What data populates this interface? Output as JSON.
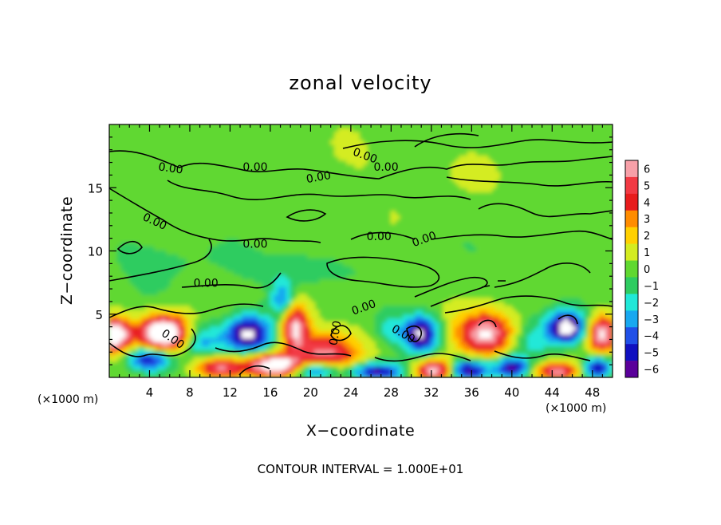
{
  "chart_data": {
    "type": "heatmap",
    "title": "zonal velocity",
    "xlabel": "X−coordinate",
    "ylabel": "Z−coordinate",
    "x_unit": "(×1000 m)",
    "z_unit": "(×1000 m)",
    "footer": "CONTOUR INTERVAL = 1.000E+01",
    "xlim": [
      0,
      50
    ],
    "ylim": [
      0,
      20
    ],
    "x_ticks": [
      4,
      8,
      12,
      16,
      20,
      24,
      28,
      32,
      36,
      40,
      44,
      48
    ],
    "x_tick_labels": [
      "4",
      "8",
      "12",
      "16",
      "20",
      "24",
      "28",
      "32",
      "36",
      "40",
      "44",
      "48"
    ],
    "y_ticks": [
      5,
      10,
      15
    ],
    "y_tick_labels": [
      "5",
      "10",
      "15"
    ],
    "colorbar": {
      "levels": [
        6,
        5,
        4,
        3,
        2,
        1,
        0,
        -1,
        -2,
        -3,
        -4,
        -5,
        -6
      ],
      "labels": [
        "6",
        "5",
        "4",
        "3",
        "2",
        "1",
        "0",
        "−1",
        "−2",
        "−3",
        "−4",
        "−5",
        "−6"
      ],
      "colors": [
        "#f7a0a8",
        "#f23a44",
        "#e81c1c",
        "#ff8c00",
        "#ffd000",
        "#d4ec20",
        "#60d830",
        "#2ecc60",
        "#20e8d8",
        "#18a8f0",
        "#2050e8",
        "#1010c0",
        "#5a009a"
      ]
    },
    "contour_labels": [
      {
        "text": "0.00",
        "x": 6.1,
        "z": 16.5,
        "angle": 8
      },
      {
        "text": "0.00",
        "x": 14.5,
        "z": 16.6,
        "angle": 0
      },
      {
        "text": "0.00",
        "x": 20.8,
        "z": 15.8,
        "angle": -10
      },
      {
        "text": "0.00",
        "x": 25.4,
        "z": 17.5,
        "angle": 20
      },
      {
        "text": "0.00",
        "x": 27.5,
        "z": 16.6,
        "angle": 0
      },
      {
        "text": "0.00",
        "x": 4.5,
        "z": 12.3,
        "angle": 25
      },
      {
        "text": "0.00",
        "x": 14.5,
        "z": 10.5,
        "angle": 0
      },
      {
        "text": "0.00",
        "x": 26.8,
        "z": 11.1,
        "angle": 0
      },
      {
        "text": "0.00",
        "x": 31.3,
        "z": 10.9,
        "angle": -20
      },
      {
        "text": "0.00",
        "x": 9.6,
        "z": 7.4,
        "angle": 0
      },
      {
        "text": "0.00",
        "x": 25.3,
        "z": 5.5,
        "angle": -20
      },
      {
        "text": "0.00",
        "x": 22.5,
        "z": 3.5,
        "angle": -80
      },
      {
        "text": "0.00",
        "x": 29.2,
        "z": 3.4,
        "angle": 30
      },
      {
        "text": "0.00",
        "x": 6.3,
        "z": 3.0,
        "angle": 35
      }
    ],
    "anomalies": [
      {
        "x": 0.5,
        "z": 3.4,
        "v": 9,
        "sx": 1.1,
        "sz": 0.9
      },
      {
        "x": 5.5,
        "z": 3.5,
        "v": 10,
        "sx": 1.8,
        "sz": 1.0
      },
      {
        "x": 4.0,
        "z": 1.5,
        "v": -6,
        "sx": 1.5,
        "sz": 0.7
      },
      {
        "x": 9.0,
        "z": 3.0,
        "v": -3.5,
        "sx": 1.6,
        "sz": 1.0
      },
      {
        "x": 11.0,
        "z": 0.8,
        "v": 6,
        "sx": 1.8,
        "sz": 0.6
      },
      {
        "x": 13.8,
        "z": 3.5,
        "v": -7,
        "sx": 1.6,
        "sz": 1.0
      },
      {
        "x": 16.5,
        "z": 1.0,
        "v": 9,
        "sx": 1.8,
        "sz": 0.6
      },
      {
        "x": 17.2,
        "z": 6.2,
        "v": -3.5,
        "sx": 0.8,
        "sz": 1.0
      },
      {
        "x": 18.5,
        "z": 4.0,
        "v": 7,
        "sx": 1.0,
        "sz": 1.2
      },
      {
        "x": 20.5,
        "z": 2.0,
        "v": 3.5,
        "sx": 2.0,
        "sz": 1.0
      },
      {
        "x": 22.5,
        "z": 1.8,
        "v": 3,
        "sx": 2.0,
        "sz": 1.2
      },
      {
        "x": 20.5,
        "z": 0.6,
        "v": -6,
        "sx": 1.5,
        "sz": 0.5
      },
      {
        "x": 26.5,
        "z": 0.5,
        "v": -6,
        "sx": 2.0,
        "sz": 0.5
      },
      {
        "x": 28.0,
        "z": 3.8,
        "v": -2,
        "sx": 1.0,
        "sz": 0.8
      },
      {
        "x": 31.0,
        "z": 3.5,
        "v": -7,
        "sx": 1.2,
        "sz": 1.0
      },
      {
        "x": 32.5,
        "z": 0.6,
        "v": 8,
        "sx": 1.5,
        "sz": 0.6
      },
      {
        "x": 37.5,
        "z": 3.5,
        "v": 7,
        "sx": 2.0,
        "sz": 1.2
      },
      {
        "x": 35.5,
        "z": 0.6,
        "v": -7,
        "sx": 1.5,
        "sz": 0.6
      },
      {
        "x": 40.0,
        "z": 0.8,
        "v": -6,
        "sx": 1.2,
        "sz": 0.6
      },
      {
        "x": 45.5,
        "z": 4.0,
        "v": -8,
        "sx": 1.3,
        "sz": 0.9
      },
      {
        "x": 44.5,
        "z": 0.5,
        "v": 6,
        "sx": 1.5,
        "sz": 0.5
      },
      {
        "x": 49.0,
        "z": 3.5,
        "v": 7,
        "sx": 1.0,
        "sz": 1.0
      },
      {
        "x": 48.5,
        "z": 0.8,
        "v": -6,
        "sx": 1.0,
        "sz": 0.6
      },
      {
        "x": 42.0,
        "z": 3.0,
        "v": -2,
        "sx": 1.5,
        "sz": 1.0
      },
      {
        "x": 19.0,
        "z": 8.5,
        "v": -1.5,
        "sx": 3.0,
        "sz": 1.0
      },
      {
        "x": 5.0,
        "z": 9.5,
        "v": -0.8,
        "sx": 4.0,
        "sz": 1.5
      },
      {
        "x": 30.0,
        "z": 16.5,
        "v": 0.5,
        "sx": 6.0,
        "sz": 2.0
      },
      {
        "x": 42.0,
        "z": 9.5,
        "v": -0.8,
        "sx": 3.0,
        "sz": 1.5
      }
    ]
  }
}
